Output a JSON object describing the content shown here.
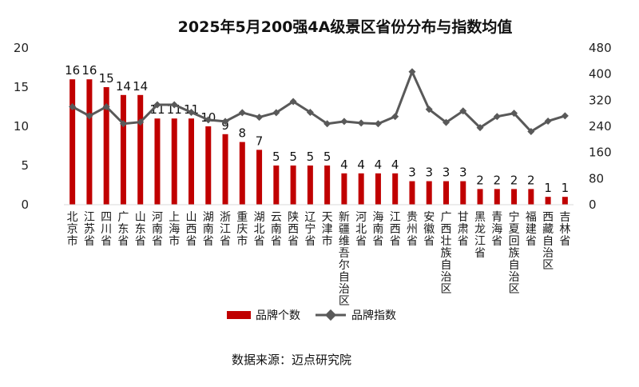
{
  "chart_data": {
    "type": "bar",
    "title": "2025年5月200强4A级景区省份分布与指数均值",
    "categories": [
      "北京市",
      "江苏省",
      "四川省",
      "广东省",
      "山东省",
      "河南省",
      "上海市",
      "山西省",
      "湖南省",
      "浙江省",
      "重庆市",
      "湖北省",
      "云南省",
      "陕西省",
      "辽宁省",
      "天津市",
      "新疆维吾尔自治区",
      "河北省",
      "海南省",
      "江西省",
      "贵州省",
      "安徽省",
      "广西壮族自治区",
      "甘肃省",
      "黑龙江省",
      "青海省",
      "宁夏回族自治区",
      "福建省",
      "西藏自治区",
      "吉林省"
    ],
    "series": [
      {
        "name": "品牌个数",
        "type": "bar",
        "axis": "left",
        "color": "#c00000",
        "values": [
          16,
          16,
          15,
          14,
          14,
          11,
          11,
          11,
          10,
          9,
          8,
          7,
          5,
          5,
          5,
          5,
          4,
          4,
          4,
          4,
          3,
          3,
          3,
          3,
          2,
          2,
          2,
          2,
          1,
          1
        ]
      },
      {
        "name": "品牌指数",
        "type": "line",
        "axis": "right",
        "color": "#595959",
        "values": [
          300,
          272,
          300,
          248,
          253,
          306,
          306,
          283,
          260,
          255,
          282,
          268,
          282,
          316,
          283,
          248,
          255,
          250,
          248,
          270,
          407,
          292,
          252,
          287,
          236,
          270,
          280,
          224,
          256,
          272
        ]
      }
    ],
    "y_left": {
      "ylim": [
        0,
        20
      ],
      "ticks": [
        0,
        5,
        10,
        15,
        20
      ]
    },
    "y_right": {
      "ylim": [
        0,
        480
      ],
      "ticks": [
        0,
        80,
        160,
        240,
        320,
        400,
        480
      ]
    },
    "grid": false,
    "legend_position": "bottom",
    "source": "数据来源：迈点研究院"
  }
}
